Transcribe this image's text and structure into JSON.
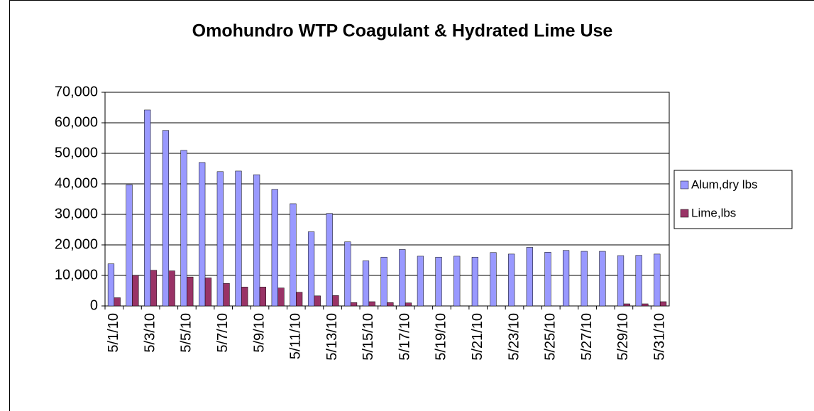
{
  "chart_data": {
    "type": "bar",
    "title": "Omohundro WTP Coagulant & Hydrated Lime Use",
    "categories": [
      "5/1/10",
      null,
      "5/3/10",
      null,
      "5/5/10",
      null,
      "5/7/10",
      null,
      "5/9/10",
      null,
      "5/11/10",
      null,
      "5/13/10",
      null,
      "5/15/10",
      null,
      "5/17/10",
      null,
      "5/19/10",
      null,
      "5/21/10",
      null,
      "5/23/10",
      null,
      "5/25/10",
      null,
      "5/27/10",
      null,
      "5/29/10",
      null,
      "5/31/10"
    ],
    "series": [
      {
        "name": "Alum,dry lbs",
        "color": "#9999ff",
        "values": [
          13800,
          39700,
          64200,
          57500,
          51000,
          47000,
          44000,
          44200,
          43000,
          38200,
          33500,
          24300,
          30300,
          21000,
          14800,
          16000,
          18500,
          16300,
          16000,
          16300,
          16000,
          17500,
          17000,
          19200,
          17600,
          18200,
          17900,
          17900,
          16500,
          16600,
          17000
        ]
      },
      {
        "name": "Lime,lbs",
        "color": "#993366",
        "values": [
          2700,
          10000,
          11700,
          11500,
          9500,
          9200,
          7400,
          6200,
          6200,
          5900,
          4500,
          3300,
          3400,
          1100,
          1400,
          1100,
          1000,
          0,
          0,
          0,
          0,
          0,
          0,
          0,
          0,
          0,
          0,
          0,
          700,
          700,
          1400
        ]
      }
    ],
    "ylim": [
      0,
      70000
    ],
    "yticks": [
      0,
      {
        "value": 10000,
        "label": "10,000"
      },
      {
        "value": 20000,
        "label": "20,000"
      },
      {
        "value": 30000,
        "label": "30,000"
      },
      {
        "value": 40000,
        "label": "40,000"
      },
      {
        "value": 50000,
        "label": "50,000"
      },
      {
        "value": 60000,
        "label": "60,000"
      },
      {
        "value": 70000,
        "label": "70,000"
      }
    ],
    "grid": true,
    "legend": "right"
  }
}
